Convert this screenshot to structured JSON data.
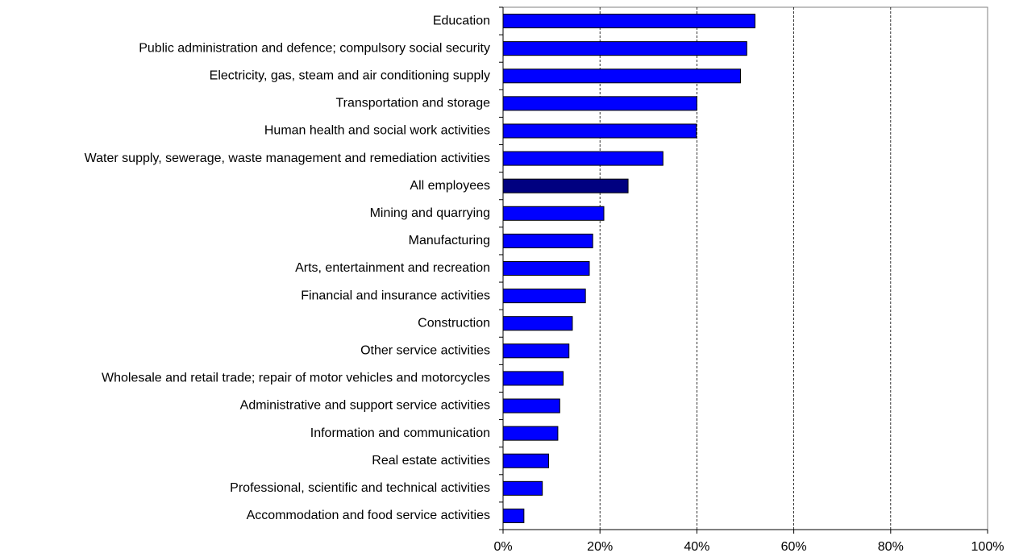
{
  "chart_data": {
    "type": "bar",
    "orientation": "horizontal",
    "categories": [
      "Education",
      "Public administration and defence; compulsory social security",
      "Electricity, gas, steam and air conditioning supply",
      "Transportation and storage",
      "Human health and social work activities",
      "Water supply, sewerage, waste management and remediation activities",
      "All employees",
      "Mining and quarrying",
      "Manufacturing",
      "Arts, entertainment and recreation",
      "Financial and insurance activities",
      "Construction",
      "Other service activities",
      "Wholesale and retail trade; repair of motor vehicles and motorcycles",
      "Administrative and support service activities",
      "Information and communication",
      "Real estate activities",
      "Professional, scientific and technical activities",
      "Accommodation and food service activities"
    ],
    "values": [
      52,
      50.3,
      49,
      40,
      39.9,
      33,
      25.8,
      20.8,
      18.5,
      17.8,
      17,
      14.3,
      13.6,
      12.4,
      11.7,
      11.3,
      9.4,
      8.1,
      4.3
    ],
    "colors": [
      "#0000ff",
      "#0000ff",
      "#0000ff",
      "#0000ff",
      "#0000ff",
      "#0000ff",
      "#000080",
      "#0000ff",
      "#0000ff",
      "#0000ff",
      "#0000ff",
      "#0000ff",
      "#0000ff",
      "#0000ff",
      "#0000ff",
      "#0000ff",
      "#0000ff",
      "#0000ff",
      "#0000ff"
    ],
    "xlim": [
      0,
      100
    ],
    "xticks": [
      {
        "value": 0,
        "label": "0%"
      },
      {
        "value": 20,
        "label": "20%"
      },
      {
        "value": 40,
        "label": "40%"
      },
      {
        "value": 60,
        "label": "60%"
      },
      {
        "value": 80,
        "label": "80%"
      },
      {
        "value": 100,
        "label": "100%"
      }
    ],
    "grid": true
  }
}
